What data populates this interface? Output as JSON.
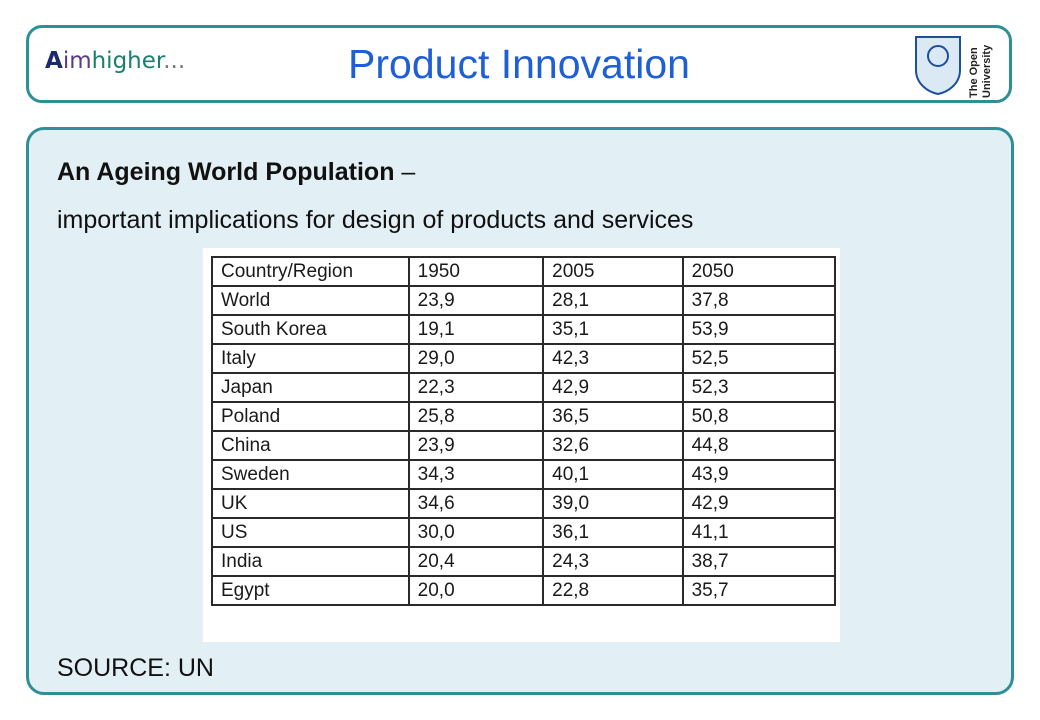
{
  "header": {
    "logo": {
      "part1": "A",
      "part2": "im",
      "part3": "higher",
      "part4": "..."
    },
    "title": "Product Innovation",
    "ou_logo": {
      "line1": "The Open",
      "line2": "University"
    }
  },
  "content": {
    "heading_bold": "An Ageing World Population",
    "heading_dash": " –",
    "subheading": "important implications for design of products and services",
    "source": "SOURCE: UN"
  },
  "table": {
    "headers": [
      "Country/Region",
      "1950",
      "2005",
      "2050"
    ],
    "rows": [
      [
        "World",
        "23,9",
        "28,1",
        "37,8"
      ],
      [
        "South Korea",
        "19,1",
        "35,1",
        "53,9"
      ],
      [
        "Italy",
        "29,0",
        "42,3",
        "52,5"
      ],
      [
        "Japan",
        "22,3",
        "42,9",
        "52,3"
      ],
      [
        "Poland",
        "25,8",
        "36,5",
        "50,8"
      ],
      [
        "China",
        "23,9",
        "32,6",
        "44,8"
      ],
      [
        "Sweden",
        "34,3",
        "40,1",
        "43,9"
      ],
      [
        "UK",
        "34,6",
        "39,0",
        "42,9"
      ],
      [
        "US",
        "30,0",
        "36,1",
        "41,1"
      ],
      [
        "India",
        "20,4",
        "24,3",
        "38,7"
      ],
      [
        "Egypt",
        "20,0",
        "22,8",
        "35,7"
      ]
    ]
  },
  "colors": {
    "border": "#2f8f97",
    "title": "#1f5fd6",
    "panel_bg": "#e2eff5"
  }
}
